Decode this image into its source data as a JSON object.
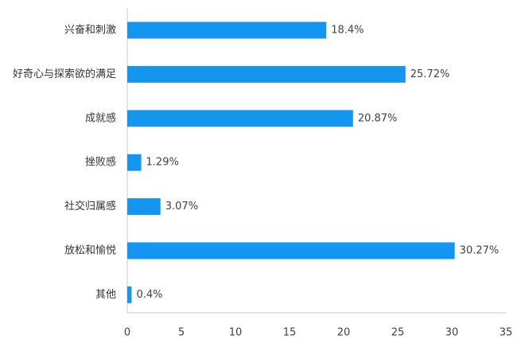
{
  "chart_data": {
    "type": "bar",
    "orientation": "horizontal",
    "categories": [
      "兴奋和刺激",
      "好奇心与探索欲的满足",
      "成就感",
      "挫败感",
      "社交归属感",
      "放松和愉悦",
      "其他"
    ],
    "values": [
      18.4,
      25.72,
      20.87,
      1.29,
      3.07,
      30.27,
      0.4
    ],
    "value_labels": [
      "18.4%",
      "25.72%",
      "20.87%",
      "1.29%",
      "3.07%",
      "30.27%",
      "0.4%"
    ],
    "x_ticks": [
      "0",
      "5",
      "10",
      "15",
      "20",
      "25",
      "30",
      "35"
    ],
    "xlim": [
      0,
      35
    ],
    "grid": false,
    "legend": "none",
    "bar_color": "#1496f0",
    "axis_color": "#c8c8c8"
  }
}
